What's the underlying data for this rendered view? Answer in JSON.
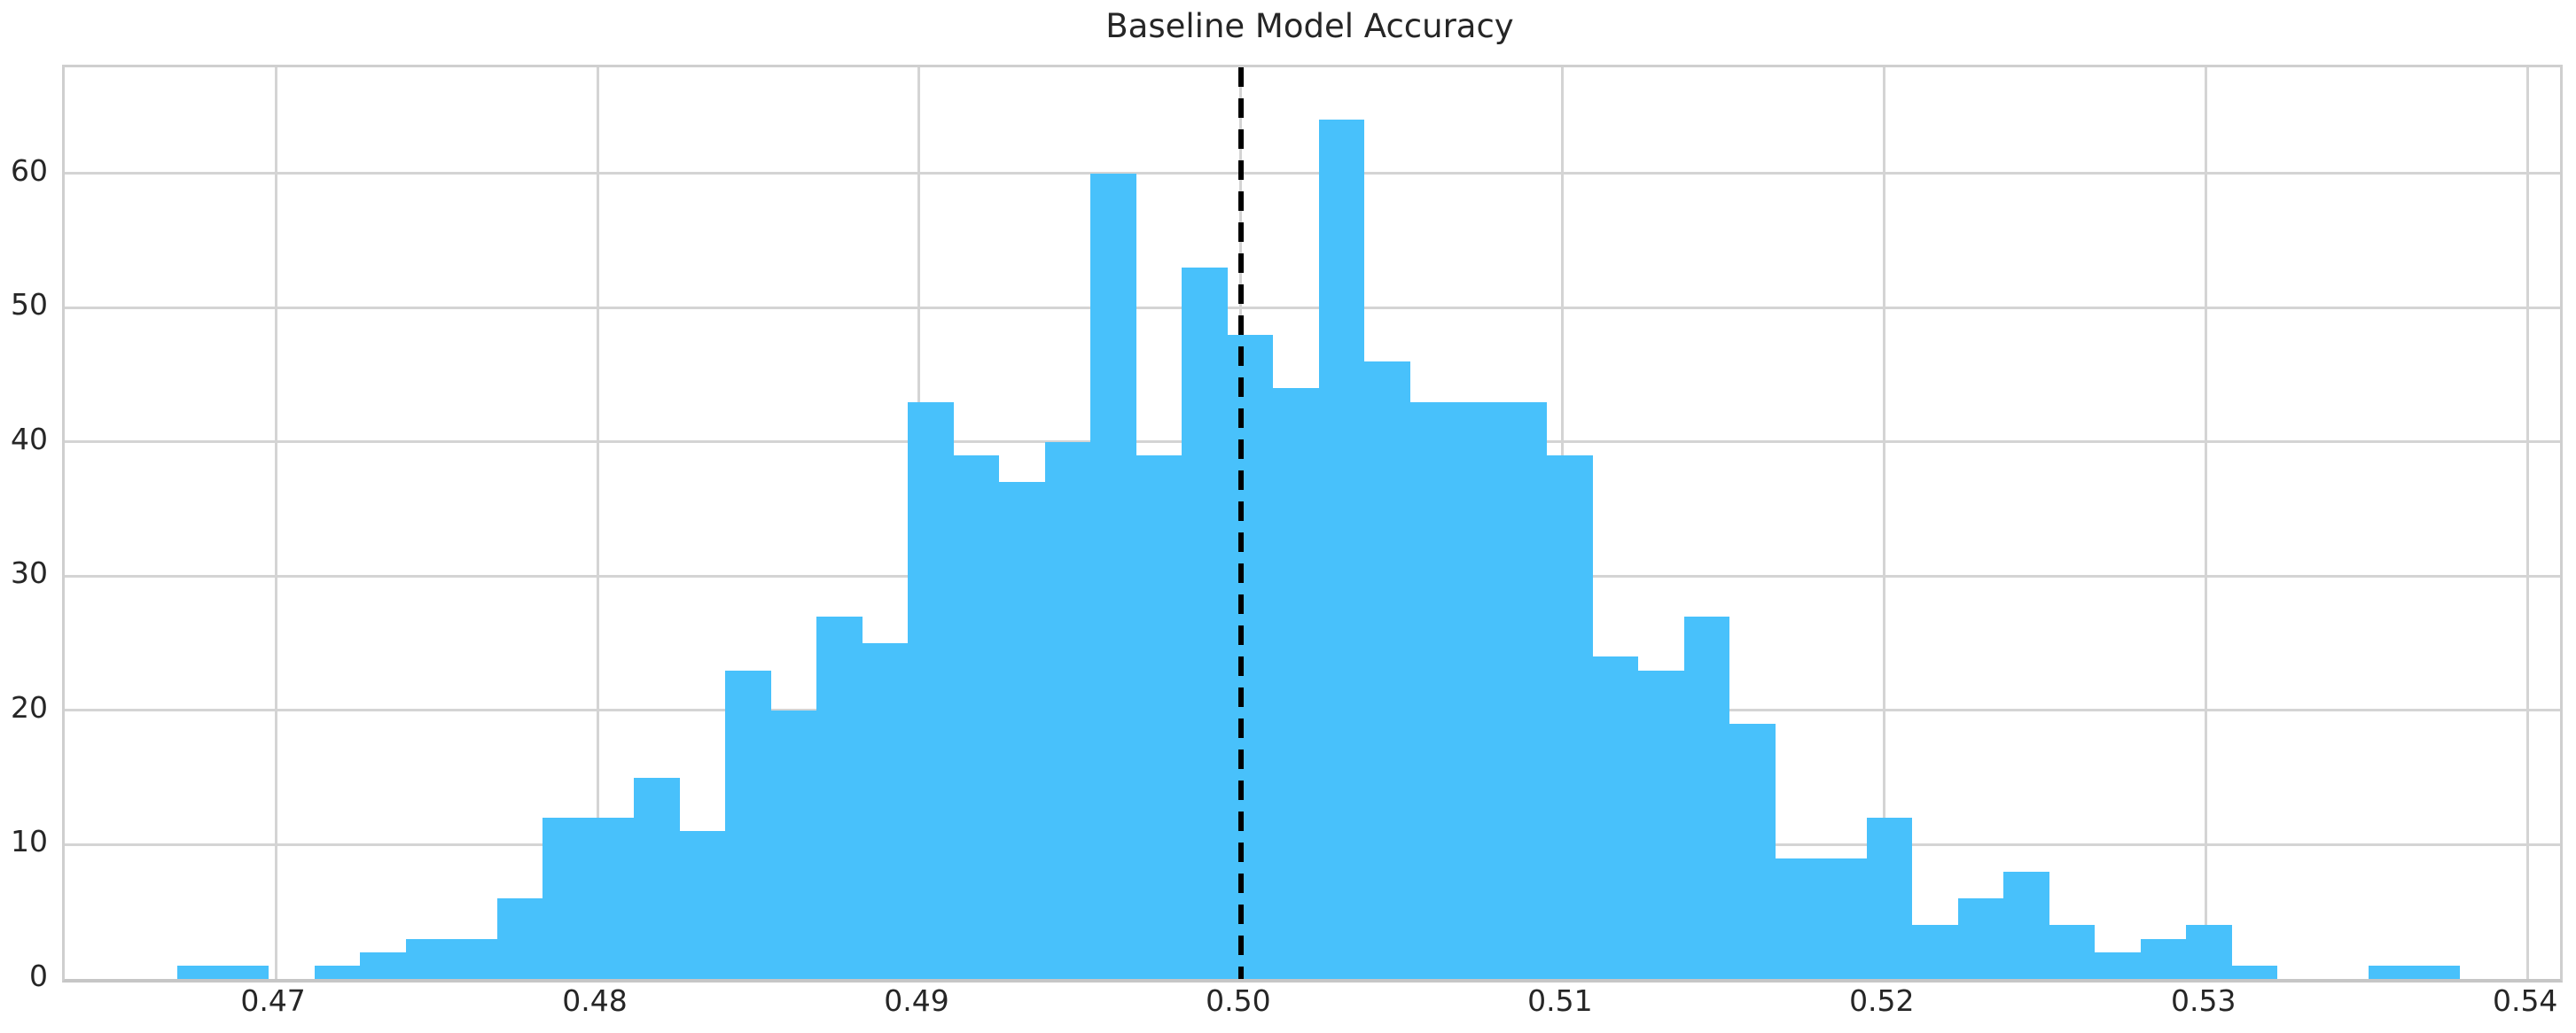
{
  "chart_data": {
    "type": "bar",
    "subtype": "histogram",
    "title": "Baseline Model Accuracy",
    "xlabel": "",
    "ylabel": "",
    "bar_color": "#48c1fb",
    "grid": true,
    "grid_color": "#d4d4d4",
    "background_color": "#ffffff",
    "text_color": "#262626",
    "bin_start": 0.46694,
    "bin_width": 0.001419,
    "counts": [
      1,
      1,
      0,
      1,
      2,
      3,
      3,
      6,
      12,
      12,
      15,
      11,
      23,
      20,
      27,
      25,
      43,
      39,
      37,
      40,
      60,
      39,
      53,
      48,
      44,
      64,
      46,
      43,
      43,
      43,
      39,
      24,
      23,
      27,
      19,
      9,
      9,
      12,
      4,
      6,
      8,
      4,
      2,
      3,
      4,
      1,
      0,
      0,
      1,
      1
    ],
    "total_samples": 1000,
    "vline": {
      "x": 0.5,
      "color": "#000000",
      "style": "dashed"
    },
    "x_ticks": [
      "0.47",
      "0.48",
      "0.49",
      "0.50",
      "0.51",
      "0.52",
      "0.53",
      "0.54"
    ],
    "y_ticks": [
      "0",
      "10",
      "20",
      "30",
      "40",
      "50",
      "60"
    ],
    "xlim": [
      0.46344,
      0.541
    ],
    "ylim": [
      0,
      67.92
    ],
    "legend": null
  }
}
